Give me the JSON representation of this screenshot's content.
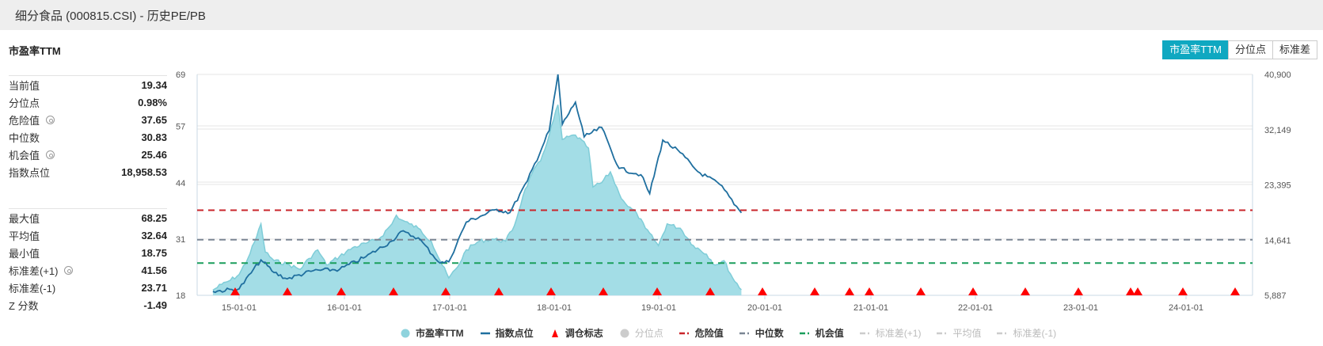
{
  "header": {
    "title": "细分食品 (000815.CSI) - 历史PE/PB"
  },
  "section_title": "市盈率TTM",
  "toggle_buttons": [
    {
      "label": "市盈率TTM",
      "active": true
    },
    {
      "label": "分位点",
      "active": false
    },
    {
      "label": "标准差",
      "active": false
    }
  ],
  "stats_group1": [
    {
      "label": "当前值",
      "value": "19.34",
      "gear": false
    },
    {
      "label": "分位点",
      "value": "0.98%",
      "gear": false
    },
    {
      "label": "危险值",
      "value": "37.65",
      "gear": true
    },
    {
      "label": "中位数",
      "value": "30.83",
      "gear": false
    },
    {
      "label": "机会值",
      "value": "25.46",
      "gear": true
    },
    {
      "label": "指数点位",
      "value": "18,958.53",
      "gear": false
    }
  ],
  "stats_group2": [
    {
      "label": "最大值",
      "value": "68.25",
      "gear": false
    },
    {
      "label": "平均值",
      "value": "32.64",
      "gear": false
    },
    {
      "label": "最小值",
      "value": "18.75",
      "gear": false
    },
    {
      "label": "标准差(+1)",
      "value": "41.56",
      "gear": true
    },
    {
      "label": "标准差(-1)",
      "value": "23.71",
      "gear": false
    },
    {
      "label": "Z 分数",
      "value": "-1.49",
      "gear": false
    }
  ],
  "colors": {
    "pe_fill": "#a3dde6",
    "pe_line": "#7fcdd8",
    "index_line": "#1f6f9f",
    "danger": "#c9252b",
    "median": "#7a8593",
    "opportunity": "#1a9e5c",
    "marker": "#ff0000",
    "accent": "#0fa8c1"
  },
  "legend": [
    {
      "label": "市盈率TTM",
      "symbol": "circle",
      "color": "#8fd3dd",
      "enabled": true
    },
    {
      "label": "指数点位",
      "symbol": "line",
      "color": "#1f6f9f",
      "enabled": true
    },
    {
      "label": "调仓标志",
      "symbol": "triangle",
      "color": "#ff0000",
      "enabled": true
    },
    {
      "label": "分位点",
      "symbol": "circle",
      "color": "#cccccc",
      "enabled": false
    },
    {
      "label": "危险值",
      "symbol": "dash",
      "color": "#c9252b",
      "enabled": true
    },
    {
      "label": "中位数",
      "symbol": "dash",
      "color": "#7a8593",
      "enabled": true
    },
    {
      "label": "机会值",
      "symbol": "dash",
      "color": "#1a9e5c",
      "enabled": true
    },
    {
      "label": "标准差(+1)",
      "symbol": "dash",
      "color": "#cccccc",
      "enabled": false
    },
    {
      "label": "平均值",
      "symbol": "dash",
      "color": "#cccccc",
      "enabled": false
    },
    {
      "label": "标准差(-1)",
      "symbol": "dash",
      "color": "#cccccc",
      "enabled": false
    }
  ],
  "chart_data": {
    "type": "area+line",
    "title": "市盈率TTM",
    "x_ticks": [
      "15-01-01",
      "16-01-01",
      "17-01-01",
      "18-01-01",
      "19-01-01",
      "20-01-01",
      "21-01-01",
      "22-01-01",
      "23-01-01",
      "24-01-01"
    ],
    "y_left": {
      "ticks": [
        18,
        31,
        44,
        57,
        69
      ],
      "range": [
        18,
        69
      ]
    },
    "y_right": {
      "ticks": [
        "5,887",
        "14,641",
        "23,395",
        "32,149",
        "40,900"
      ],
      "range": [
        5887,
        40900
      ]
    },
    "reference_lines": {
      "danger": 37.65,
      "median": 30.83,
      "opportunity": 25.46
    },
    "series": [
      {
        "name": "市盈率TTM",
        "type": "area",
        "axis": "left",
        "points": [
          [
            "14-07",
            19.2
          ],
          [
            "14-09",
            20.5
          ],
          [
            "14-11",
            21.5
          ],
          [
            "15-01",
            22.8
          ],
          [
            "15-03",
            26.5
          ],
          [
            "15-05",
            31.5
          ],
          [
            "15-06",
            34.5
          ],
          [
            "15-07",
            28.0
          ],
          [
            "15-09",
            26.0
          ],
          [
            "15-12",
            25.2
          ],
          [
            "16-03",
            24.0
          ],
          [
            "16-05",
            26.5
          ],
          [
            "16-07",
            28.5
          ],
          [
            "16-09",
            25.0
          ],
          [
            "16-12",
            27.0
          ],
          [
            "17-03",
            29.0
          ],
          [
            "17-06",
            30.0
          ],
          [
            "17-09",
            31.0
          ],
          [
            "17-12",
            34.5
          ],
          [
            "18-01",
            36.5
          ],
          [
            "18-02",
            35.5
          ],
          [
            "18-04",
            34.5
          ],
          [
            "18-06",
            33.5
          ],
          [
            "18-09",
            30.5
          ],
          [
            "18-11",
            26.0
          ],
          [
            "19-01",
            22.0
          ],
          [
            "19-03",
            24.5
          ],
          [
            "19-05",
            28.5
          ],
          [
            "19-08",
            30.5
          ],
          [
            "19-11",
            31.0
          ],
          [
            "20-02",
            30.5
          ],
          [
            "20-04",
            34.0
          ],
          [
            "20-06",
            41.0
          ],
          [
            "20-08",
            46.0
          ],
          [
            "20-10",
            49.0
          ],
          [
            "20-12",
            55.0
          ],
          [
            "21-02",
            62.0
          ],
          [
            "21-03",
            54.0
          ],
          [
            "21-06",
            55.0
          ],
          [
            "21-09",
            52.0
          ],
          [
            "21-10",
            43.0
          ],
          [
            "21-12",
            44.0
          ],
          [
            "22-02",
            46.5
          ],
          [
            "22-04",
            41.5
          ],
          [
            "22-06",
            38.5
          ],
          [
            "22-08",
            37.0
          ],
          [
            "22-10",
            33.5
          ],
          [
            "23-01",
            29.5
          ],
          [
            "23-03",
            34.5
          ],
          [
            "23-06",
            33.5
          ],
          [
            "23-09",
            29.5
          ],
          [
            "23-12",
            27.5
          ],
          [
            "24-02",
            25.0
          ],
          [
            "24-04",
            26.0
          ],
          [
            "24-06",
            22.0
          ],
          [
            "24-08",
            19.3
          ]
        ]
      },
      {
        "name": "指数点位",
        "type": "line",
        "axis": "right",
        "points": [
          [
            "14-07",
            6500
          ],
          [
            "15-01",
            6900
          ],
          [
            "15-06",
            11500
          ],
          [
            "15-09",
            9500
          ],
          [
            "15-12",
            8500
          ],
          [
            "16-06",
            9800
          ],
          [
            "16-12",
            10000
          ],
          [
            "17-06",
            12000
          ],
          [
            "17-12",
            14500
          ],
          [
            "18-02",
            16000
          ],
          [
            "18-06",
            15000
          ],
          [
            "18-11",
            11000
          ],
          [
            "19-01",
            11200
          ],
          [
            "19-05",
            17500
          ],
          [
            "19-12",
            19500
          ],
          [
            "20-03",
            19000
          ],
          [
            "20-07",
            24000
          ],
          [
            "20-12",
            32000
          ],
          [
            "21-02",
            40900
          ],
          [
            "21-03",
            33000
          ],
          [
            "21-06",
            36500
          ],
          [
            "21-08",
            31000
          ],
          [
            "21-12",
            32500
          ],
          [
            "22-04",
            26000
          ],
          [
            "22-09",
            25000
          ],
          [
            "22-11",
            22000
          ],
          [
            "23-02",
            30500
          ],
          [
            "23-06",
            28500
          ],
          [
            "23-10",
            25500
          ],
          [
            "24-03",
            23500
          ],
          [
            "24-08",
            18958
          ]
        ]
      },
      {
        "name": "调仓标志",
        "type": "markers",
        "count": 22
      }
    ],
    "legend_position": "bottom",
    "grid": "horizontal"
  }
}
